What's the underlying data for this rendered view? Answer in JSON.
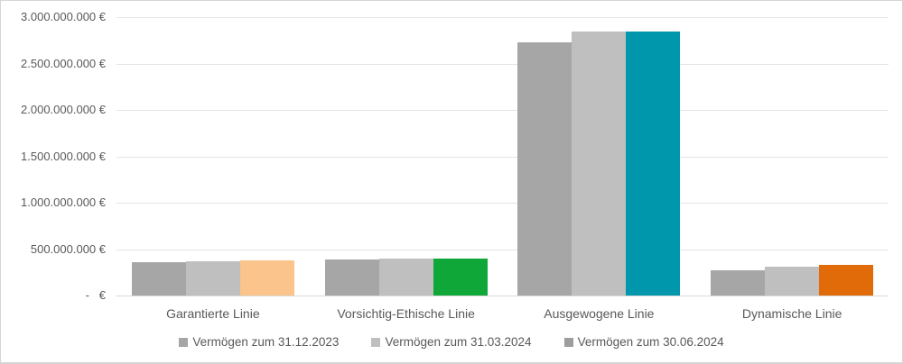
{
  "chart_data": {
    "type": "bar",
    "title": "",
    "categories": [
      "Garantierte Linie",
      "Vorsichtig-Ethische Linie",
      "Ausgewogene Linie",
      "Dynamische Linie"
    ],
    "series": [
      {
        "name": "Vermögen zum 31.12.2023",
        "color": "#a6a6a6",
        "legend_color": "#a6a6a6",
        "values": [
          355000000,
          385000000,
          2730000000,
          270000000
        ]
      },
      {
        "name": "Vermögen zum 31.03.2024",
        "color": "#bfbfbf",
        "legend_color": "#bfbfbf",
        "values": [
          370000000,
          400000000,
          2840000000,
          310000000
        ]
      },
      {
        "name": "Vermögen zum 30.06.2024",
        "point_colors": [
          "#fbc48c",
          "#0fa838",
          "#0096ac",
          "#e16b08"
        ],
        "legend_color": "#9d9d9d",
        "values": [
          380000000,
          400000000,
          2840000000,
          335000000
        ]
      }
    ],
    "y_axis": {
      "min": 0,
      "max": 3000000000,
      "step": 500000000,
      "tick_labels": [
        "3.000.000.000 €",
        "2.500.000.000 €",
        "2.000.000.000 €",
        "1.500.000.000 €",
        "1.000.000.000 €",
        "500.000.000 €",
        "-   €"
      ]
    },
    "grid": true,
    "legend_position": "bottom",
    "currency": "€"
  },
  "styles": {
    "text_color": "#595959",
    "gridline_color": "#e4e4e4",
    "axis_line_color": "#d9d9d9",
    "frame_border_color": "#d6d6d6",
    "background": "#ffffff"
  }
}
